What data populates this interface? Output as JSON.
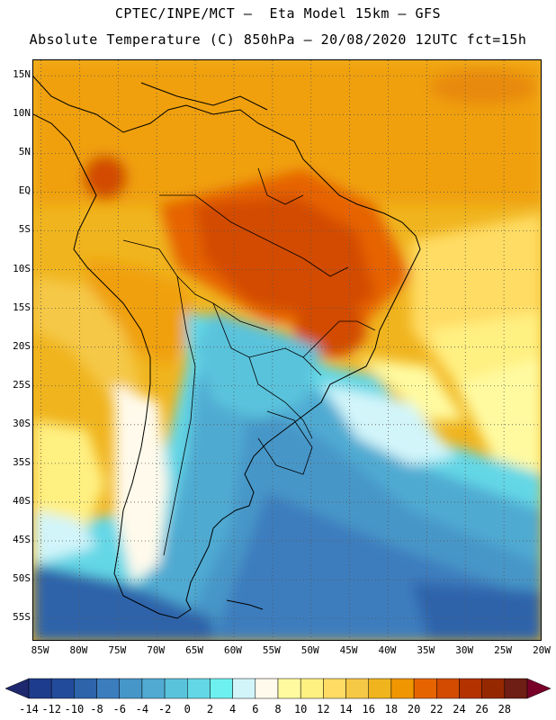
{
  "header": {
    "line1": "CPTEC/INPE/MCT –  Eta Model 15km – GFS",
    "line2": "Absolute Temperature (C) 850hPa – 20/08/2020 12UTC fct=15h"
  },
  "map": {
    "lat_labels": [
      "15N",
      "10N",
      "5N",
      "EQ",
      "5S",
      "10S",
      "15S",
      "20S",
      "25S",
      "30S",
      "35S",
      "40S",
      "45S",
      "50S",
      "55S"
    ],
    "lat_values": [
      15,
      10,
      5,
      0,
      -5,
      -10,
      -15,
      -20,
      -25,
      -30,
      -35,
      -40,
      -45,
      -50,
      -55
    ],
    "lon_labels": [
      "85W",
      "80W",
      "75W",
      "70W",
      "65W",
      "60W",
      "55W",
      "50W",
      "45W",
      "40W",
      "35W",
      "30W",
      "25W",
      "20W"
    ],
    "lon_values": [
      -85,
      -80,
      -75,
      -70,
      -65,
      -60,
      -55,
      -50,
      -45,
      -40,
      -35,
      -30,
      -25,
      -20
    ],
    "extent": {
      "lon_min": -86,
      "lon_max": -20,
      "lat_min": -58,
      "lat_max": 17
    }
  },
  "colorbar": {
    "labels": [
      "-14",
      "-12",
      "-10",
      "-8",
      "-6",
      "-4",
      "-2",
      "0",
      "2",
      "4",
      "6",
      "8",
      "10",
      "12",
      "14",
      "16",
      "18",
      "20",
      "22",
      "24",
      "26",
      "28"
    ],
    "colors": [
      "#1e3c8c",
      "#234b9b",
      "#2d64aa",
      "#3c7dbe",
      "#4696c8",
      "#50aad2",
      "#5ac3dc",
      "#64d7e6",
      "#6ef0f0",
      "#d2f5fa",
      "#fffaeb",
      "#fffaa0",
      "#fff082",
      "#ffdc64",
      "#f5c846",
      "#f0b41e",
      "#f09600",
      "#e66400",
      "#d24b00",
      "#b43200",
      "#962800",
      "#6e1e14"
    ],
    "under_color": "#1e286e",
    "over_color": "#780028"
  }
}
